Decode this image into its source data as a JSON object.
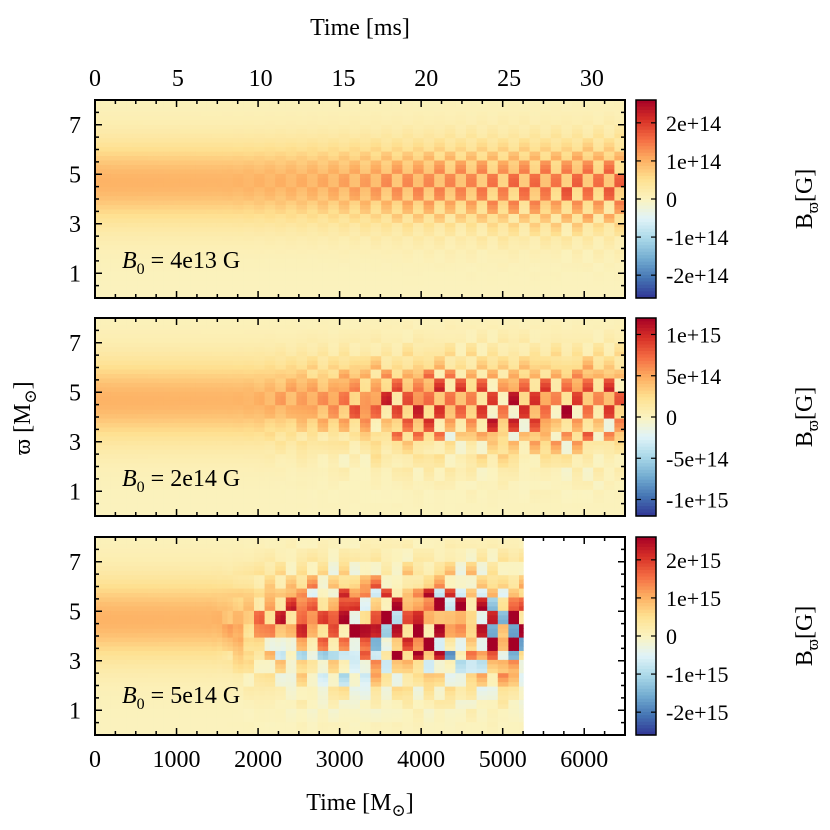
{
  "chart_data": {
    "type": "heatmap",
    "shared": {
      "x_range": [
        0,
        6500
      ],
      "x_ticks": [
        0,
        1000,
        2000,
        3000,
        4000,
        5000,
        6000
      ],
      "x_tick_labels": [
        "0",
        "1000",
        "2000",
        "3000",
        "4000",
        "5000",
        "6000"
      ],
      "xlabel_main": "Time [M",
      "xlabel_sub": "⊙",
      "xlabel_end": "]",
      "top_x_range": [
        0,
        32
      ],
      "top_x_ticks": [
        0,
        5,
        10,
        15,
        20,
        25,
        30
      ],
      "top_x_tick_labels": [
        "0",
        "5",
        "10",
        "15",
        "20",
        "25",
        "30"
      ],
      "top_xlabel": "Time [ms]",
      "y_range": [
        0,
        8
      ],
      "y_ticks": [
        1,
        3,
        5,
        7
      ],
      "y_tick_labels": [
        "1",
        "3",
        "5",
        "7"
      ],
      "ylabel_main": "ϖ [M",
      "ylabel_sub": "⊙",
      "ylabel_end": "]",
      "colorbar_label_main": "B",
      "colorbar_label_sub": "ϖ",
      "colorbar_label_end": "[G]",
      "colormap": [
        "#313695",
        "#4575b4",
        "#74add1",
        "#abd9e9",
        "#e0f3f8",
        "#fbf3bf",
        "#fee090",
        "#fdae61",
        "#f46d43",
        "#d73027",
        "#a50026"
      ]
    },
    "panels": [
      {
        "id": "p1",
        "annotation_main": "B",
        "annotation_sub": "0",
        "annotation_rest": " = 4e13 G",
        "vmax": 260000000000000.0,
        "cb_ticks": [
          200000000000000.0,
          100000000000000.0,
          0,
          -100000000000000.0,
          -200000000000000.0
        ],
        "cb_tick_labels": [
          "2e+14",
          "1e+14",
          "0",
          "-1e+14",
          "-2e+14"
        ],
        "growth_start": 2600,
        "growth_span": 4600,
        "checker_start": 1500,
        "checker_amp": 0.8,
        "noise_amp": 0.1,
        "neg_frac": 0.35,
        "data_end": 6500
      },
      {
        "id": "p2",
        "annotation_main": "B",
        "annotation_sub": "0",
        "annotation_rest": " = 2e14 G",
        "vmax": 1200000000000000.0,
        "cb_ticks": [
          1000000000000000.0,
          500000000000000.0,
          0,
          -500000000000000.0,
          -1000000000000000.0
        ],
        "cb_tick_labels": [
          "1e+15",
          "5e+14",
          "0",
          "-5e+14",
          "-1e+15"
        ],
        "growth_start": 1900,
        "growth_span": 2000,
        "checker_start": 1600,
        "checker_amp": 0.9,
        "noise_amp": 0.3,
        "neg_frac": 0.5,
        "data_end": 6500
      },
      {
        "id": "p3",
        "annotation_main": "B",
        "annotation_sub": "0",
        "annotation_rest": " = 5e14 G",
        "vmax": 2600000000000000.0,
        "cb_ticks": [
          2000000000000000.0,
          1000000000000000.0,
          0,
          -1000000000000000.0,
          -2000000000000000.0
        ],
        "cb_tick_labels": [
          "2e+15",
          "1e+15",
          "0",
          "-1e+15",
          "-2e+15"
        ],
        "growth_start": 1500,
        "growth_span": 1400,
        "checker_start": 1300,
        "checker_amp": 1.2,
        "noise_amp": 0.9,
        "neg_frac": 0.55,
        "data_end": 5250
      }
    ]
  }
}
